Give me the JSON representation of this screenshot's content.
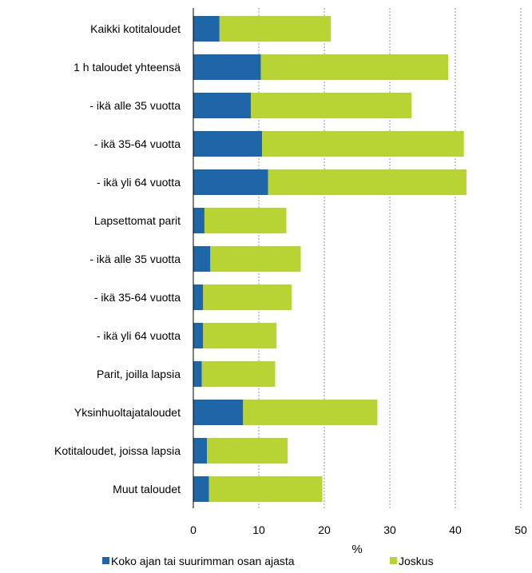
{
  "chart_data": {
    "type": "bar",
    "orientation": "horizontal",
    "stacked": true,
    "categories": [
      "Kaikki kotitaloudet",
      "1 h taloudet yhteensä",
      "- ikä alle 35 vuotta",
      "- ikä 35-64 vuotta",
      "- ikä yli 64 vuotta",
      "Lapsettomat parit",
      "- ikä alle 35 vuotta",
      "- ikä 35-64 vuotta",
      "- ikä yli 64 vuotta",
      "Parit, joilla lapsia",
      "Yksinhuoltajataloudet",
      "Kotitaloudet, joissa lapsia",
      "Muut taloudet"
    ],
    "series": [
      {
        "name": "Koko ajan tai suurimman osan ajasta",
        "color": "#1f66a8",
        "values": [
          4.0,
          10.3,
          8.8,
          10.5,
          11.4,
          1.7,
          2.6,
          1.5,
          1.5,
          1.3,
          7.6,
          2.1,
          2.4
        ]
      },
      {
        "name": "Joskus",
        "color": "#b8d434",
        "values": [
          17.0,
          28.6,
          24.5,
          30.8,
          30.3,
          12.5,
          13.8,
          13.5,
          11.2,
          11.2,
          20.5,
          12.3,
          17.3
        ]
      }
    ],
    "xlabel": "%",
    "xlim": [
      0,
      50
    ],
    "xticks": [
      0,
      10,
      20,
      30,
      40,
      50
    ],
    "grid": true,
    "legend_position": "bottom"
  }
}
